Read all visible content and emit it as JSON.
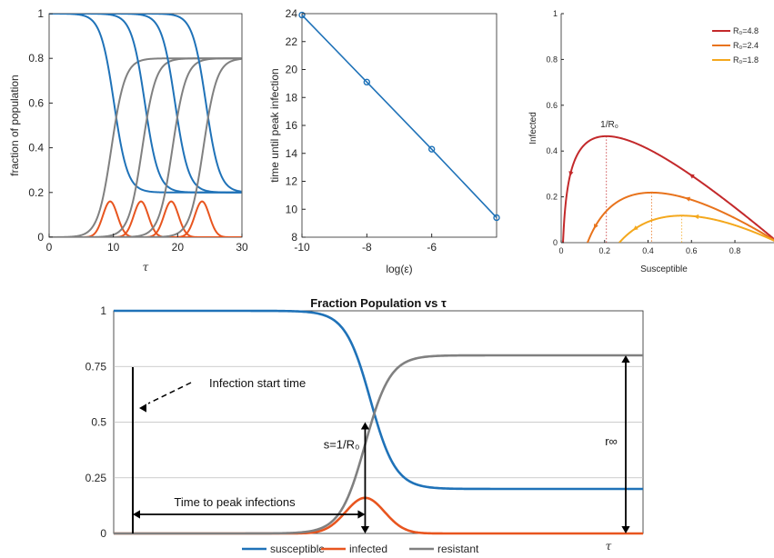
{
  "colors": {
    "susceptible": "#1f72b8",
    "infected": "#e8551f",
    "resistant": "#808080",
    "r48": "#c3292b",
    "r24": "#e8731c",
    "r18": "#f4a81d",
    "axis": "#262626",
    "grid": "#bdbdbd"
  },
  "chart_data": [
    {
      "type": "line",
      "xlabel": "τ",
      "ylabel": "fraction of population",
      "xlim": [
        0,
        30
      ],
      "ylim": [
        0,
        1
      ],
      "xticks": [
        "0",
        "10",
        "20",
        "30"
      ],
      "yticks": [
        "0",
        "0.2",
        "0.4",
        "0.6",
        "0.8",
        "1"
      ],
      "curve_centers": [
        9.5,
        14.3,
        19.0,
        23.8
      ],
      "series_families": [
        "susceptible",
        "infected",
        "resistant"
      ],
      "s_inf": 0.2,
      "r_inf": 0.8,
      "i_peak": 0.16
    },
    {
      "type": "line",
      "xlabel": "log(ε)",
      "ylabel": "time until peak infection",
      "x": [
        -10,
        -8,
        -6,
        -4
      ],
      "y": [
        23.9,
        19.1,
        14.3,
        9.4
      ],
      "xlim": [
        -10,
        -4
      ],
      "ylim": [
        8,
        24
      ],
      "xticks": [
        "-10",
        "-8",
        "-6"
      ],
      "yticks": [
        "8",
        "10",
        "12",
        "14",
        "16",
        "18",
        "20",
        "22",
        "24"
      ]
    },
    {
      "type": "line",
      "xlabel": "Susceptible",
      "ylabel": "Infected",
      "xlim": [
        0,
        1
      ],
      "ylim": [
        0,
        1
      ],
      "xticks": [
        "0",
        "0.2",
        "0.4",
        "0.6",
        "0.8"
      ],
      "yticks": [
        "0",
        "0.2",
        "0.4",
        "0.6",
        "0.8",
        "1"
      ],
      "series": [
        {
          "name": "R₀=4.8",
          "r0": 4.8
        },
        {
          "name": "R₀=2.4",
          "r0": 2.4
        },
        {
          "name": "R₀=1.8",
          "r0": 1.8
        }
      ],
      "legend": "top-right",
      "annotation": "1/R₀"
    },
    {
      "type": "line",
      "title": "Fraction Population vs τ",
      "xlabel": "τ",
      "ylim": [
        0,
        1
      ],
      "yticks": [
        "0",
        "0.25",
        "0.5",
        "0.75",
        "1"
      ],
      "grid": true,
      "legend": "bottom",
      "series": [
        {
          "name": "susceptible",
          "final": 0.2
        },
        {
          "name": "infected",
          "peak": 0.16
        },
        {
          "name": "resistant",
          "final": 0.8
        }
      ],
      "annotations": {
        "start": "Infection start time",
        "peak": "Time to peak infections",
        "s": "s=1/R₀",
        "r": "r∞"
      }
    }
  ]
}
